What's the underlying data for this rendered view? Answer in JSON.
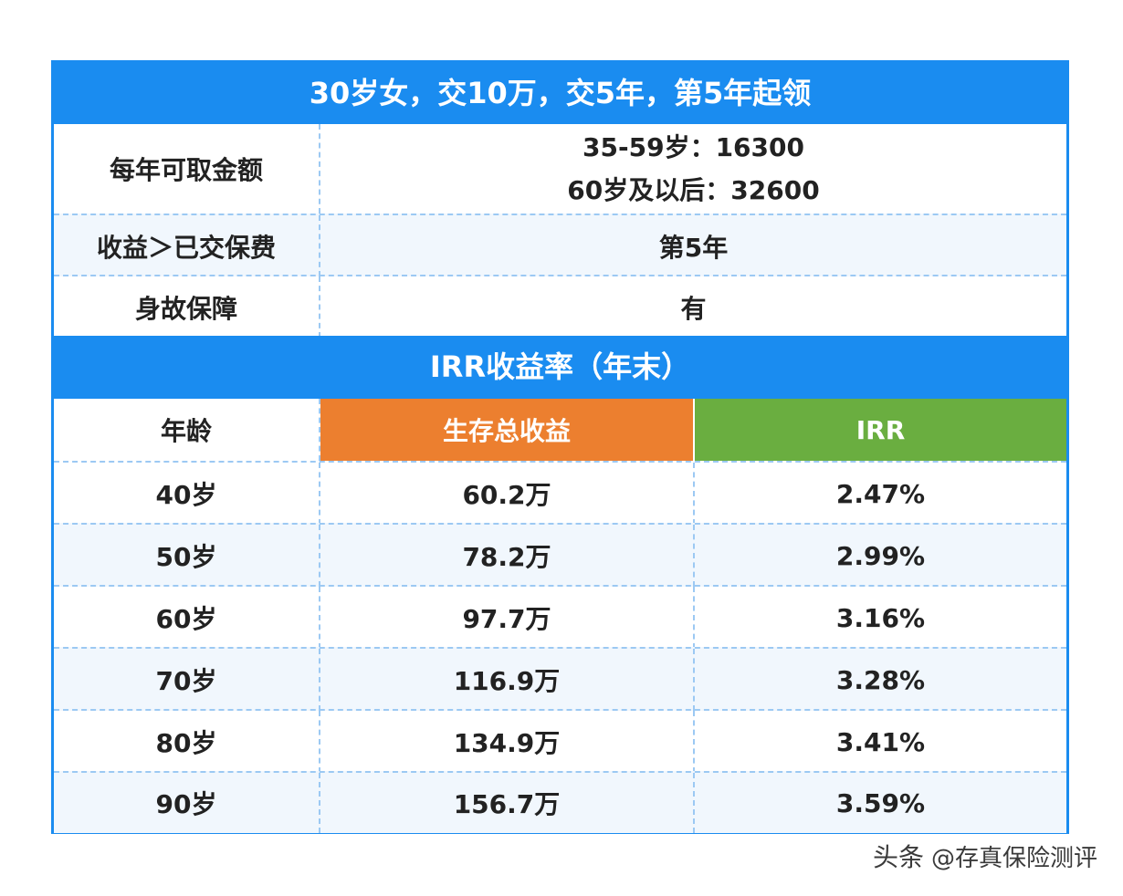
{
  "title": "30岁女，交10万，交5年，第5年起领",
  "summary_rows": [
    {
      "label": "每年可取金额",
      "lines": [
        "35-59岁：16300",
        "60岁及以后：32600"
      ]
    },
    {
      "label": "收益＞已交保费",
      "lines": [
        "第5年"
      ]
    },
    {
      "label": "身故保障",
      "lines": [
        "有"
      ]
    }
  ],
  "irr_section_title": "IRR收益率（年末）",
  "irr_table": {
    "headers": {
      "age": "年龄",
      "income": "生存总收益",
      "irr": "IRR"
    },
    "rows": [
      {
        "age": "40岁",
        "income": "60.2万",
        "irr": "2.47%"
      },
      {
        "age": "50岁",
        "income": "78.2万",
        "irr": "2.99%"
      },
      {
        "age": "60岁",
        "income": "97.7万",
        "irr": "3.16%"
      },
      {
        "age": "70岁",
        "income": "116.9万",
        "irr": "3.28%"
      },
      {
        "age": "80岁",
        "income": "134.9万",
        "irr": "3.41%"
      },
      {
        "age": "90岁",
        "income": "156.7万",
        "irr": "3.59%"
      }
    ]
  },
  "watermark": {
    "platform": "头条",
    "handle": "@存真保险测评"
  },
  "colors": {
    "primary_blue": "#1a8cf0",
    "orange": "#ec7f2f",
    "green": "#6aae40"
  }
}
